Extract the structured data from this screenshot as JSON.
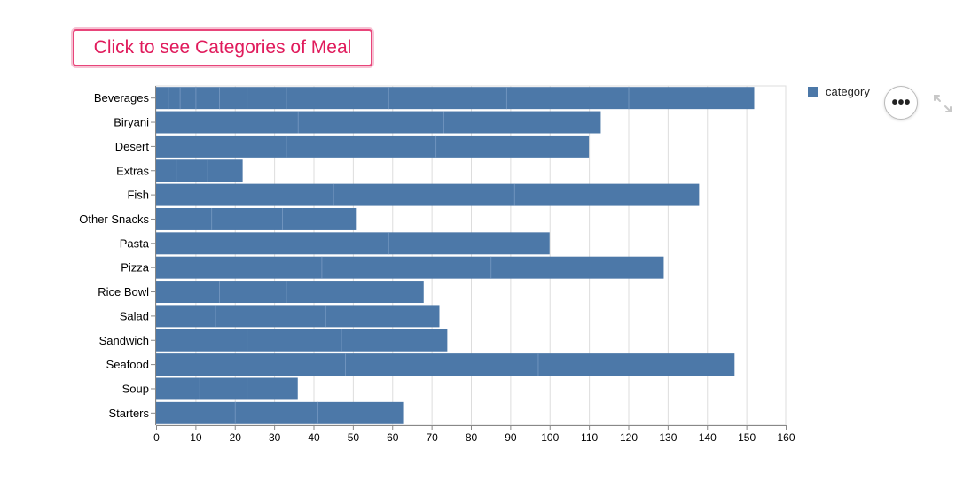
{
  "button": {
    "label": "Click to see Categories of Meal"
  },
  "legend": {
    "label": "category",
    "color": "#4c78a8"
  },
  "toolbar": {
    "menu_icon": "ellipsis-icon",
    "expand_icon": "expand-icon",
    "menu_label": "•••"
  },
  "chart_data": {
    "type": "bar",
    "orientation": "horizontal",
    "stacked": true,
    "bar_color": "#4c78a8",
    "categories": [
      "Beverages",
      "Biryani",
      "Desert",
      "Extras",
      "Fish",
      "Other Snacks",
      "Pasta",
      "Pizza",
      "Rice Bowl",
      "Salad",
      "Sandwich",
      "Seafood",
      "Soup",
      "Starters"
    ],
    "values": [
      152,
      113,
      110,
      22,
      138,
      51,
      100,
      129,
      68,
      72,
      74,
      147,
      36,
      63
    ],
    "segment_boundaries": [
      [
        3,
        6,
        10,
        16,
        23,
        33,
        59,
        89,
        120
      ],
      [
        36,
        73
      ],
      [
        33,
        71
      ],
      [
        5,
        13
      ],
      [
        45,
        91
      ],
      [
        14,
        32
      ],
      [
        59
      ],
      [
        42,
        85
      ],
      [
        16,
        33
      ],
      [
        15,
        43
      ],
      [
        23,
        47
      ],
      [
        48,
        97
      ],
      [
        11,
        23
      ],
      [
        20,
        41
      ]
    ],
    "xlim": [
      0,
      160
    ],
    "x_ticks": [
      0,
      10,
      20,
      30,
      40,
      50,
      60,
      70,
      80,
      90,
      100,
      110,
      120,
      130,
      140,
      150,
      160
    ],
    "grid": true,
    "legend_position": "top-right"
  }
}
